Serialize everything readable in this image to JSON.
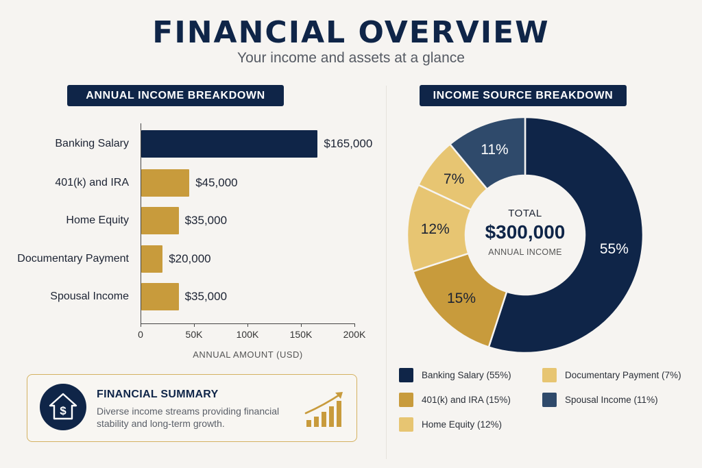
{
  "header": {
    "title": "FINANCIAL OVERVIEW",
    "subtitle": "Your income and assets at a glance"
  },
  "colors": {
    "navy": "#0f2548",
    "gold_dark": "#c89b3c",
    "gold_light": "#e7c572",
    "slate": "#2f4a6b",
    "background": "#f6f4f1"
  },
  "bar_section": {
    "title": "ANNUAL INCOME BREAKDOWN",
    "x_axis_title": "ANNUAL AMOUNT (USD)",
    "x_ticks": [
      "0",
      "50K",
      "100K",
      "150K",
      "200K"
    ]
  },
  "donut_section": {
    "title": "INCOME SOURCE BREAKDOWN",
    "center_label": "TOTAL",
    "center_value": "$300,000",
    "center_sublabel": "ANNUAL INCOME"
  },
  "summary": {
    "title": "FINANCIAL SUMMARY",
    "text": "Diverse income streams providing financial stability and long-term growth.",
    "left_icon": "house-dollar-icon",
    "right_icon": "growth-chart-icon"
  },
  "legend": [
    {
      "label": "Banking Salary (55%)",
      "color": "#0f2548"
    },
    {
      "label": "Documentary Payment (7%)",
      "color": "#e7c572"
    },
    {
      "label": "401(k) and IRA (15%)",
      "color": "#c89b3c"
    },
    {
      "label": "Spousal Income (11%)",
      "color": "#2f4a6b"
    },
    {
      "label": "Home Equity (12%)",
      "color": "#e7c572"
    }
  ],
  "chart_data": [
    {
      "type": "bar",
      "orientation": "horizontal",
      "title": "ANNUAL INCOME BREAKDOWN",
      "categories": [
        "Banking Salary",
        "401(k) and IRA",
        "Home Equity",
        "Documentary Payment",
        "Spousal Income"
      ],
      "values": [
        165000,
        45000,
        35000,
        20000,
        35000
      ],
      "value_labels": [
        "$165,000",
        "$45,000",
        "$35,000",
        "$20,000",
        "$35,000"
      ],
      "bar_colors": [
        "#0f2548",
        "#c89b3c",
        "#c89b3c",
        "#c89b3c",
        "#c89b3c"
      ],
      "xlabel": "ANNUAL AMOUNT (USD)",
      "ylabel": "",
      "xlim": [
        0,
        200000
      ],
      "x_ticks": [
        "0",
        "50K",
        "100K",
        "150K",
        "200K"
      ],
      "grid": false
    },
    {
      "type": "pie",
      "subtype": "donut",
      "title": "INCOME SOURCE BREAKDOWN",
      "categories": [
        "Banking Salary",
        "401(k) and IRA",
        "Home Equity",
        "Documentary Payment",
        "Spousal Income"
      ],
      "values": [
        55,
        15,
        12,
        7,
        11
      ],
      "value_labels": [
        "55%",
        "15%",
        "12%",
        "7%",
        "11%"
      ],
      "colors": [
        "#0f2548",
        "#c89b3c",
        "#e7c572",
        "#e7c572",
        "#2f4a6b"
      ],
      "center_text": [
        "TOTAL",
        "$300,000",
        "ANNUAL INCOME"
      ],
      "legend_position": "bottom"
    }
  ]
}
